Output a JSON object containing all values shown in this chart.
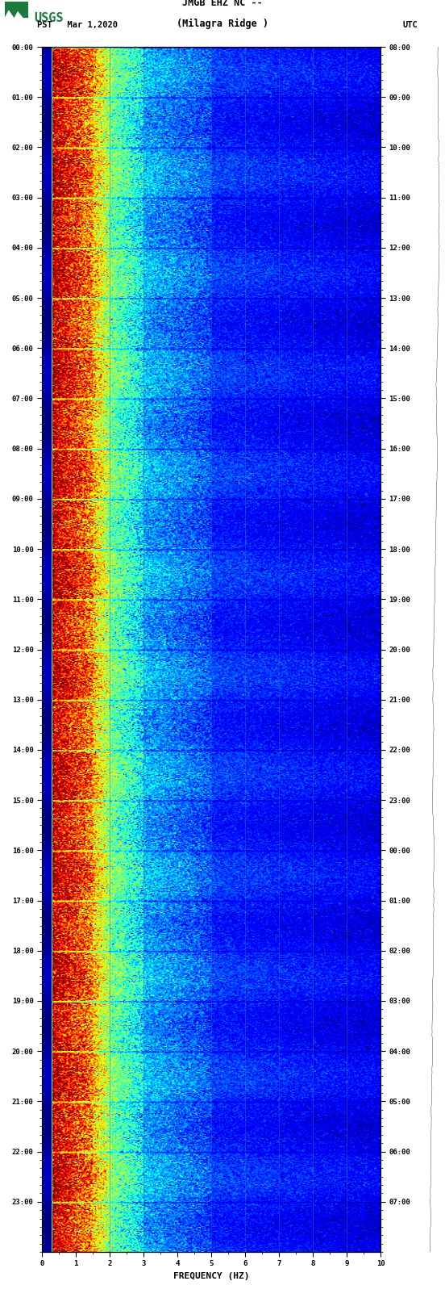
{
  "title_line1": "JMGB EHZ NC --",
  "title_line2": "(Milagra Ridge )",
  "left_label": "PST   Mar 1,2020",
  "right_label": "UTC",
  "xlabel": "FREQUENCY (HZ)",
  "freq_min": 0,
  "freq_max": 10,
  "time_hours": 24,
  "left_ticks": [
    "00:00",
    "01:00",
    "02:00",
    "03:00",
    "04:00",
    "05:00",
    "06:00",
    "07:00",
    "08:00",
    "09:00",
    "10:00",
    "11:00",
    "12:00",
    "13:00",
    "14:00",
    "15:00",
    "16:00",
    "17:00",
    "18:00",
    "19:00",
    "20:00",
    "21:00",
    "22:00",
    "23:00"
  ],
  "right_ticks": [
    "08:00",
    "09:00",
    "10:00",
    "11:00",
    "12:00",
    "13:00",
    "14:00",
    "15:00",
    "16:00",
    "17:00",
    "18:00",
    "19:00",
    "20:00",
    "21:00",
    "22:00",
    "23:00",
    "00:00",
    "01:00",
    "02:00",
    "03:00",
    "04:00",
    "05:00",
    "06:00",
    "07:00"
  ],
  "bg_color": "#ffffff",
  "fig_width": 5.52,
  "fig_height": 16.13,
  "dpi": 100,
  "grid_line_color": "#5566aa",
  "grid_line_alpha": 0.5,
  "tick_color": "black",
  "usgs_color": "#1a7a3e"
}
